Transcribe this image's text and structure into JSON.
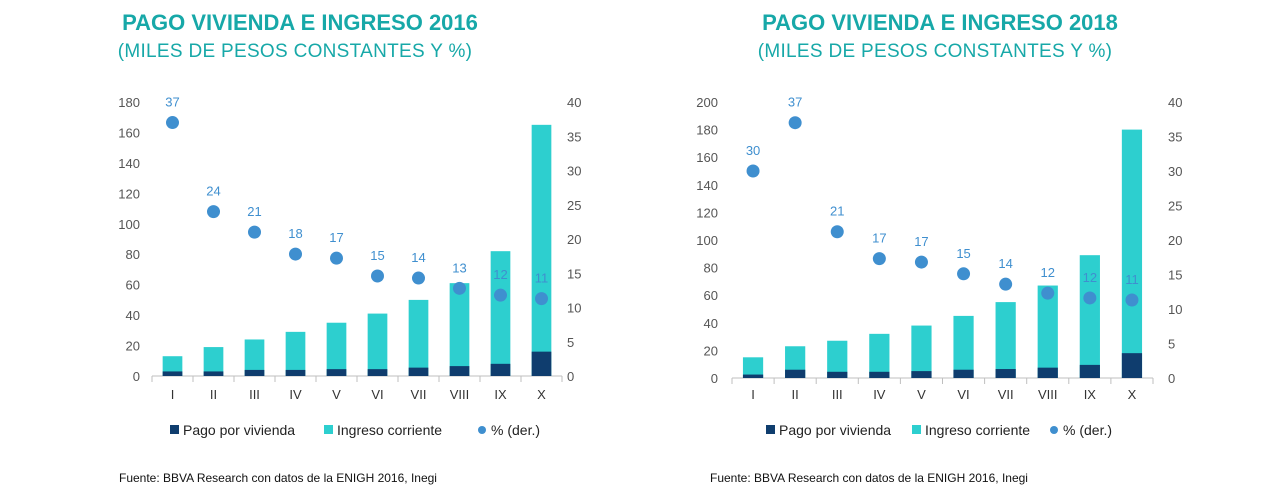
{
  "chart_data": [
    {
      "type": "bar",
      "title": "PAGO VIVIENDA E INGRESO 2016",
      "subtitle": "(MILES DE PESOS CONSTANTES  Y %)",
      "categories": [
        "I",
        "II",
        "III",
        "IV",
        "V",
        "VI",
        "VII",
        "VIII",
        "IX",
        "X"
      ],
      "series": [
        {
          "name": "Pago por vivienda",
          "kind": "bar",
          "axis": "left",
          "color": "#0f3d6e",
          "values": [
            3,
            3,
            4,
            4,
            4.5,
            4.5,
            5.5,
            6.5,
            8,
            16
          ]
        },
        {
          "name": "Ingreso corriente",
          "kind": "bar",
          "axis": "left",
          "color": "#2dcfcf",
          "values": [
            13,
            19,
            24,
            29,
            35,
            41,
            50,
            61,
            82,
            165
          ]
        },
        {
          "name": "% (der.)",
          "kind": "scatter",
          "axis": "right",
          "color": "#3f8fcf",
          "values": [
            37,
            24,
            21,
            18,
            17,
            15,
            14,
            13,
            12,
            11
          ],
          "labels": [
            "37",
            "24",
            "21",
            "18",
            "17",
            "15",
            "14",
            "13",
            "12",
            "11"
          ],
          "plot_values": [
            37,
            24,
            21,
            17.8,
            17.2,
            14.6,
            14.3,
            12.8,
            11.8,
            11.3
          ]
        }
      ],
      "ylim": [
        0,
        180
      ],
      "yticks": [
        0,
        20,
        40,
        60,
        80,
        100,
        120,
        140,
        160,
        180
      ],
      "y2lim": [
        0,
        40
      ],
      "y2ticks": [
        0,
        5,
        10,
        15,
        20,
        25,
        30,
        35,
        40
      ],
      "legend_position": "bottom",
      "source": "Fuente: BBVA Research  con datos de la ENIGH  2016,  Inegi"
    },
    {
      "type": "bar",
      "title": "PAGO VIVIENDA E INGRESO 2018",
      "subtitle": "(MILES DE PESOS CONSTANTES  Y %)",
      "categories": [
        "I",
        "II",
        "III",
        "IV",
        "V",
        "VI",
        "VII",
        "VIII",
        "IX",
        "X"
      ],
      "series": [
        {
          "name": "Pago por vivienda",
          "kind": "bar",
          "axis": "left",
          "color": "#0f3d6e",
          "values": [
            2.5,
            6,
            4.5,
            4.5,
            5,
            6,
            6.5,
            7.5,
            9.5,
            18
          ]
        },
        {
          "name": "Ingreso corriente",
          "kind": "bar",
          "axis": "left",
          "color": "#2dcfcf",
          "values": [
            15,
            23,
            27,
            32,
            38,
            45,
            55,
            67,
            89,
            180
          ]
        },
        {
          "name": "% (der.)",
          "kind": "scatter",
          "axis": "right",
          "color": "#3f8fcf",
          "values": [
            30,
            37,
            21,
            17,
            17,
            15,
            14,
            12,
            12,
            11
          ],
          "labels": [
            "30",
            "37",
            "21",
            "17",
            "17",
            "15",
            "14",
            "12",
            "12",
            "11"
          ],
          "plot_values": [
            30,
            37,
            21.2,
            17.3,
            16.8,
            15.1,
            13.6,
            12.3,
            11.6,
            11.3
          ]
        }
      ],
      "ylim": [
        0,
        200
      ],
      "yticks": [
        0,
        20,
        40,
        60,
        80,
        100,
        120,
        140,
        160,
        180,
        200
      ],
      "y2lim": [
        0,
        40
      ],
      "y2ticks": [
        0,
        5,
        10,
        15,
        20,
        25,
        30,
        35,
        40
      ],
      "legend_position": "bottom",
      "source": "Fuente: BBVA Research  con datos de la ENIGH  2016,  Inegi"
    }
  ]
}
